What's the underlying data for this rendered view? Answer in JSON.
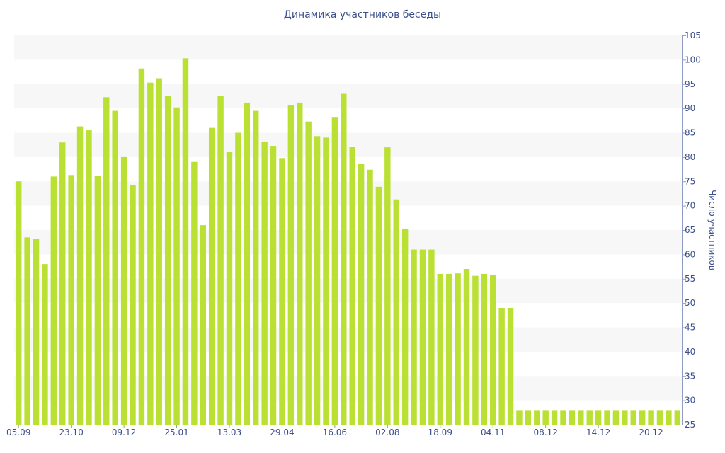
{
  "chart_data": {
    "type": "bar",
    "title": "Динамика участников беседы",
    "xlabel": "",
    "ylabel": "Число участников",
    "ylim": [
      25,
      105
    ],
    "y_axis_side": "right",
    "y_tick_step": 5,
    "grid": "alternating horizontal bands",
    "bar_color": "#bbe034",
    "band_color": "#f7f7f7",
    "text_color": "#3b4f8a",
    "x_tick_labels": [
      {
        "index": 0,
        "label": "05.09"
      },
      {
        "index": 6,
        "label": "23.10"
      },
      {
        "index": 12,
        "label": "09.12"
      },
      {
        "index": 18,
        "label": "25.01"
      },
      {
        "index": 24,
        "label": "13.03"
      },
      {
        "index": 30,
        "label": "29.04"
      },
      {
        "index": 36,
        "label": "16.06"
      },
      {
        "index": 42,
        "label": "02.08"
      },
      {
        "index": 48,
        "label": "18.09"
      },
      {
        "index": 54,
        "label": "04.11"
      },
      {
        "index": 60,
        "label": "08.12"
      },
      {
        "index": 66,
        "label": "14.12"
      },
      {
        "index": 72,
        "label": "20.12"
      }
    ],
    "values": [
      75,
      63.5,
      63.2,
      58,
      76,
      83,
      76.3,
      86.3,
      85.5,
      76.2,
      92.3,
      89.5,
      80,
      74.2,
      98.2,
      95.3,
      96.2,
      92.5,
      90.2,
      100.3,
      79,
      66,
      86,
      92.5,
      81,
      85,
      91.2,
      89.5,
      83.2,
      82.3,
      79.8,
      90.6,
      91.2,
      87.3,
      84.3,
      84,
      88.1,
      93,
      82.1,
      78.6,
      77.4,
      73.9,
      82,
      71.3,
      65.3,
      61,
      61,
      61,
      56,
      56,
      56.1,
      57,
      55.6,
      56,
      55.7,
      49,
      49,
      28,
      28,
      28,
      28,
      28,
      28,
      28,
      28,
      28,
      28,
      28,
      28,
      28,
      28,
      28,
      28,
      28,
      28,
      28
    ]
  }
}
